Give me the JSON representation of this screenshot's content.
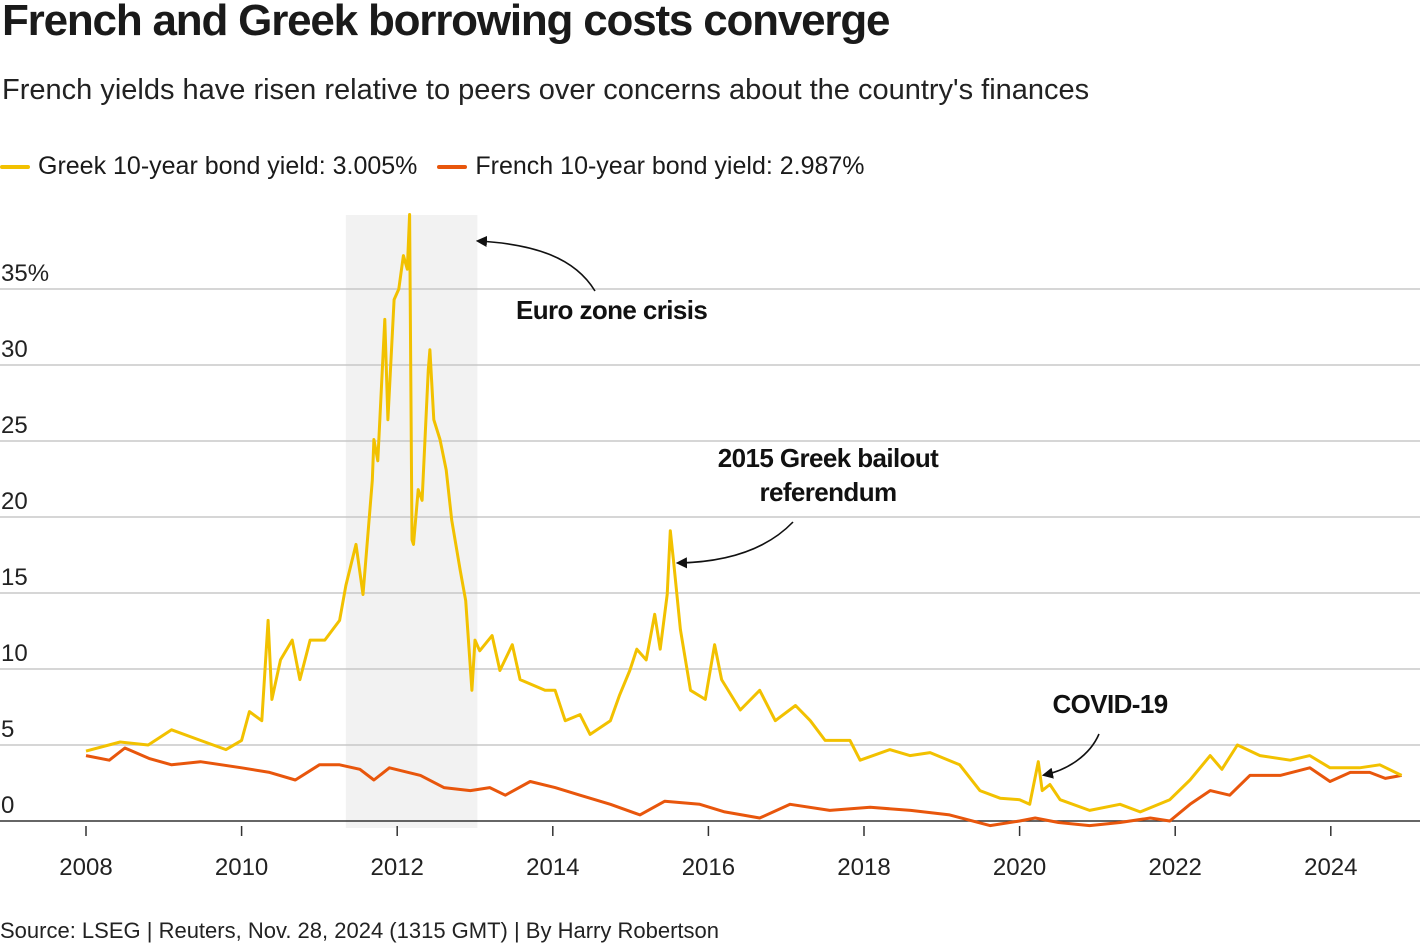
{
  "title": "French and Greek borrowing costs converge",
  "subtitle": "French yields have risen relative to peers over concerns about the country's finances",
  "source": "Source: LSEG | Reuters, Nov. 28, 2024 (1315 GMT) | By Harry Robertson",
  "chart_data": {
    "type": "line",
    "title": "French and Greek borrowing costs converge",
    "xlabel": "",
    "ylabel": "",
    "xlim": [
      2008,
      2025
    ],
    "ylim": [
      0,
      40
    ],
    "grid": true,
    "legend_placement": "top-left",
    "x_ticks": [
      "2008",
      "2010",
      "2012",
      "2014",
      "2016",
      "2018",
      "2020",
      "2022",
      "2024"
    ],
    "y_ticks": [
      {
        "value": 0,
        "label": "0"
      },
      {
        "value": 5,
        "label": "5"
      },
      {
        "value": 10,
        "label": "10"
      },
      {
        "value": 15,
        "label": "15"
      },
      {
        "value": 20,
        "label": "20"
      },
      {
        "value": 25,
        "label": "25"
      },
      {
        "value": 30,
        "label": "30"
      },
      {
        "value": 35,
        "label": "35%"
      }
    ],
    "shaded_period": {
      "from": 2011.34,
      "to": 2013.03
    },
    "series": [
      {
        "name": "Greek 10-year bond yield: 3.005%",
        "color": "#f2c100",
        "points": [
          [
            2008.0,
            4.6
          ],
          [
            2008.44,
            5.2
          ],
          [
            2008.8,
            5.0
          ],
          [
            2009.1,
            6.0
          ],
          [
            2009.47,
            5.3
          ],
          [
            2009.8,
            4.7
          ],
          [
            2010.0,
            5.3
          ],
          [
            2010.1,
            7.2
          ],
          [
            2010.26,
            6.6
          ],
          [
            2010.34,
            13.2
          ],
          [
            2010.39,
            8.0
          ],
          [
            2010.5,
            10.6
          ],
          [
            2010.65,
            11.9
          ],
          [
            2010.75,
            9.3
          ],
          [
            2010.88,
            11.9
          ],
          [
            2011.07,
            11.9
          ],
          [
            2011.26,
            13.2
          ],
          [
            2011.34,
            15.5
          ],
          [
            2011.47,
            18.2
          ],
          [
            2011.56,
            14.9
          ],
          [
            2011.68,
            22.4
          ],
          [
            2011.7,
            25.1
          ],
          [
            2011.75,
            23.7
          ],
          [
            2011.84,
            33.0
          ],
          [
            2011.88,
            26.4
          ],
          [
            2011.96,
            34.3
          ],
          [
            2012.02,
            35.0
          ],
          [
            2012.08,
            37.2
          ],
          [
            2012.13,
            36.3
          ],
          [
            2012.16,
            39.9
          ],
          [
            2012.19,
            18.5
          ],
          [
            2012.21,
            18.2
          ],
          [
            2012.27,
            21.8
          ],
          [
            2012.32,
            21.1
          ],
          [
            2012.4,
            29.7
          ],
          [
            2012.42,
            31.0
          ],
          [
            2012.47,
            26.4
          ],
          [
            2012.55,
            25.1
          ],
          [
            2012.63,
            23.1
          ],
          [
            2012.7,
            19.8
          ],
          [
            2012.81,
            16.5
          ],
          [
            2012.88,
            14.5
          ],
          [
            2012.96,
            8.6
          ],
          [
            2013.0,
            11.9
          ],
          [
            2013.06,
            11.2
          ],
          [
            2013.22,
            12.2
          ],
          [
            2013.32,
            9.9
          ],
          [
            2013.48,
            11.6
          ],
          [
            2013.58,
            9.3
          ],
          [
            2013.9,
            8.6
          ],
          [
            2014.03,
            8.6
          ],
          [
            2014.16,
            6.6
          ],
          [
            2014.35,
            7.0
          ],
          [
            2014.48,
            5.7
          ],
          [
            2014.74,
            6.6
          ],
          [
            2014.86,
            8.3
          ],
          [
            2014.99,
            9.9
          ],
          [
            2015.08,
            11.3
          ],
          [
            2015.2,
            10.6
          ],
          [
            2015.31,
            13.6
          ],
          [
            2015.38,
            11.3
          ],
          [
            2015.47,
            14.9
          ],
          [
            2015.51,
            19.1
          ],
          [
            2015.55,
            17.2
          ],
          [
            2015.64,
            12.6
          ],
          [
            2015.77,
            8.6
          ],
          [
            2015.96,
            8.0
          ],
          [
            2016.08,
            11.6
          ],
          [
            2016.17,
            9.3
          ],
          [
            2016.41,
            7.3
          ],
          [
            2016.66,
            8.6
          ],
          [
            2016.86,
            6.6
          ],
          [
            2017.12,
            7.6
          ],
          [
            2017.31,
            6.6
          ],
          [
            2017.5,
            5.3
          ],
          [
            2017.82,
            5.3
          ],
          [
            2017.95,
            4.0
          ],
          [
            2018.33,
            4.7
          ],
          [
            2018.59,
            4.3
          ],
          [
            2018.85,
            4.5
          ],
          [
            2019.23,
            3.7
          ],
          [
            2019.49,
            2.0
          ],
          [
            2019.75,
            1.5
          ],
          [
            2020.0,
            1.4
          ],
          [
            2020.13,
            1.1
          ],
          [
            2020.24,
            3.9
          ],
          [
            2020.29,
            2.0
          ],
          [
            2020.39,
            2.4
          ],
          [
            2020.52,
            1.4
          ],
          [
            2020.9,
            0.7
          ],
          [
            2021.29,
            1.1
          ],
          [
            2021.55,
            0.6
          ],
          [
            2021.93,
            1.4
          ],
          [
            2022.19,
            2.7
          ],
          [
            2022.45,
            4.3
          ],
          [
            2022.6,
            3.4
          ],
          [
            2022.8,
            5.0
          ],
          [
            2023.09,
            4.3
          ],
          [
            2023.48,
            4.0
          ],
          [
            2023.73,
            4.3
          ],
          [
            2023.99,
            3.5
          ],
          [
            2024.37,
            3.5
          ],
          [
            2024.63,
            3.7
          ],
          [
            2024.91,
            3.0
          ]
        ]
      },
      {
        "name": "French 10-year bond yield: 2.987%",
        "color": "#e8560c",
        "points": [
          [
            2008.0,
            4.3
          ],
          [
            2008.3,
            4.0
          ],
          [
            2008.5,
            4.8
          ],
          [
            2008.82,
            4.1
          ],
          [
            2009.1,
            3.7
          ],
          [
            2009.47,
            3.9
          ],
          [
            2010.0,
            3.5
          ],
          [
            2010.36,
            3.2
          ],
          [
            2010.69,
            2.7
          ],
          [
            2011.0,
            3.7
          ],
          [
            2011.26,
            3.7
          ],
          [
            2011.52,
            3.4
          ],
          [
            2011.7,
            2.7
          ],
          [
            2011.9,
            3.5
          ],
          [
            2012.3,
            3.0
          ],
          [
            2012.6,
            2.2
          ],
          [
            2012.94,
            2.0
          ],
          [
            2013.19,
            2.2
          ],
          [
            2013.39,
            1.7
          ],
          [
            2013.71,
            2.6
          ],
          [
            2014.03,
            2.2
          ],
          [
            2014.35,
            1.7
          ],
          [
            2014.74,
            1.1
          ],
          [
            2015.12,
            0.4
          ],
          [
            2015.44,
            1.3
          ],
          [
            2015.89,
            1.1
          ],
          [
            2016.21,
            0.6
          ],
          [
            2016.66,
            0.2
          ],
          [
            2017.05,
            1.1
          ],
          [
            2017.56,
            0.7
          ],
          [
            2018.08,
            0.9
          ],
          [
            2018.6,
            0.7
          ],
          [
            2019.1,
            0.4
          ],
          [
            2019.62,
            -0.3
          ],
          [
            2020.0,
            0.0
          ],
          [
            2020.2,
            0.2
          ],
          [
            2020.5,
            -0.1
          ],
          [
            2020.9,
            -0.3
          ],
          [
            2021.29,
            -0.1
          ],
          [
            2021.68,
            0.2
          ],
          [
            2021.93,
            0.0
          ],
          [
            2022.19,
            1.1
          ],
          [
            2022.45,
            2.0
          ],
          [
            2022.7,
            1.7
          ],
          [
            2022.96,
            3.0
          ],
          [
            2023.35,
            3.0
          ],
          [
            2023.73,
            3.5
          ],
          [
            2023.99,
            2.6
          ],
          [
            2024.25,
            3.2
          ],
          [
            2024.5,
            3.2
          ],
          [
            2024.7,
            2.8
          ],
          [
            2024.91,
            3.0
          ]
        ]
      }
    ],
    "annotations": [
      {
        "text": "Euro zone crisis",
        "x": 2012.1,
        "y": 38
      },
      {
        "text": [
          "2015 Greek bailout",
          "referendum"
        ],
        "x": 2015.5,
        "y": 17
      },
      {
        "text": "COVID-19",
        "x": 2020.3,
        "y": 3.0
      }
    ]
  }
}
